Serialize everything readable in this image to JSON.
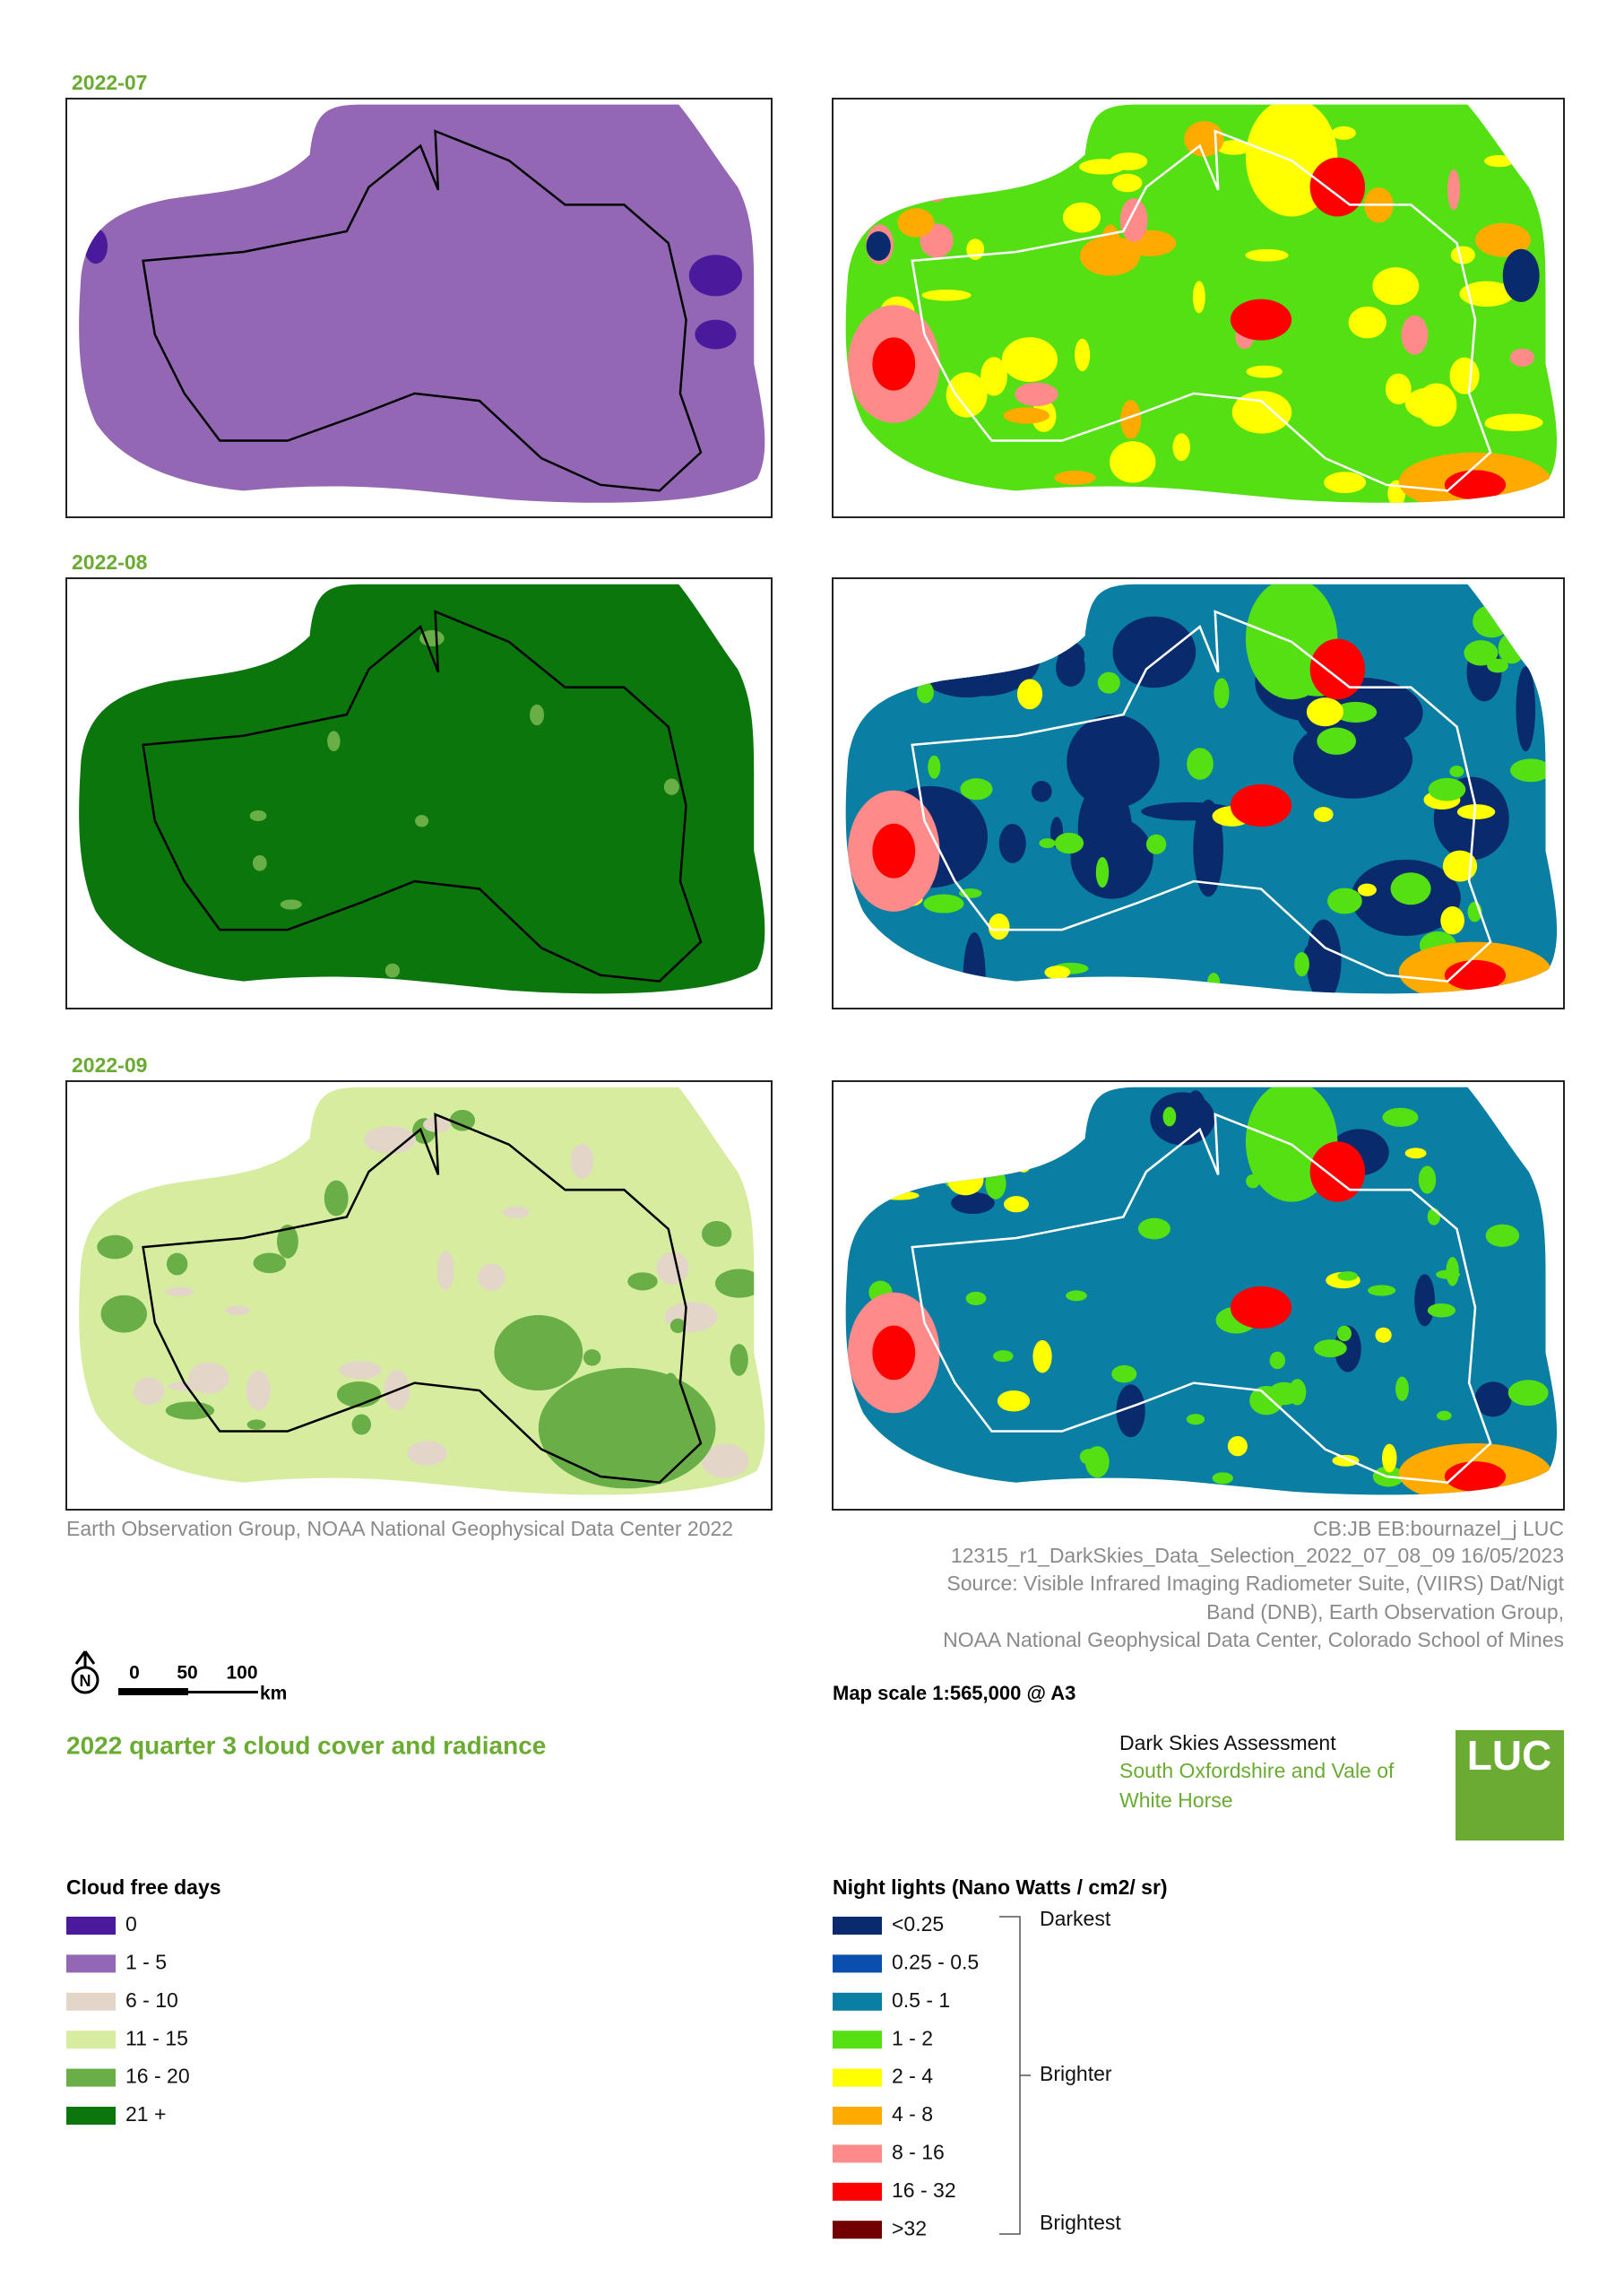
{
  "maps": [
    {
      "label": "2022-07"
    },
    {
      "label": "2022-08"
    },
    {
      "label": "2022-09"
    }
  ],
  "credits": {
    "left": "Earth Observation Group, NOAA National Geophysical Data Center 2022",
    "right": [
      "CB:JB EB:bournazel_j LUC",
      "12315_r1_DarkSkies_Data_Selection_2022_07_08_09  16/05/2023",
      "Source: Visible Infrared Imaging Radiometer Suite, (VIIRS) Dat/Nigt",
      "Band (DNB), Earth Observation Group,",
      "NOAA National Geophysical Data Center, Colorado School of Mines"
    ]
  },
  "scale_bar": {
    "north": "N",
    "labels": [
      "0",
      "50",
      "100"
    ],
    "unit": "km"
  },
  "map_scale": "Map scale 1:565,000 @ A3",
  "title": "2022 quarter 3 cloud cover and radiance",
  "project": {
    "name": "Dark Skies Assessment",
    "area_lines": [
      "South Oxfordshire and Vale of",
      "White Horse"
    ],
    "logo": "LUC"
  },
  "legend_cloud": {
    "title": "Cloud free days",
    "items": [
      {
        "label": "0",
        "color": "#4a1a9c"
      },
      {
        "label": "1 - 5",
        "color": "#9467b5"
      },
      {
        "label": "6 - 10",
        "color": "#e3d6c9"
      },
      {
        "label": "11 - 15",
        "color": "#d6eda0"
      },
      {
        "label": "16 - 20",
        "color": "#6aae48"
      },
      {
        "label": "21 +",
        "color": "#0b760b"
      }
    ]
  },
  "legend_lights": {
    "title": "Night lights (Nano Watts / cm2/ sr)",
    "items": [
      {
        "label": "<0.25",
        "color": "#0a2a6e"
      },
      {
        "label": "0.25 - 0.5",
        "color": "#0a4fae"
      },
      {
        "label": "0.5 - 1",
        "color": "#0a7ea3"
      },
      {
        "label": "1 - 2",
        "color": "#55e014"
      },
      {
        "label": "2 - 4",
        "color": "#ffff00"
      },
      {
        "label": "4 - 8",
        "color": "#ffaa00"
      },
      {
        "label": "8 - 16",
        "color": "#ff8a8a"
      },
      {
        "label": "16 - 32",
        "color": "#ff0000"
      },
      {
        "label": ">32",
        "color": "#730000"
      }
    ],
    "scale_labels": [
      "Darkest",
      "Brighter",
      "Brightest"
    ]
  }
}
